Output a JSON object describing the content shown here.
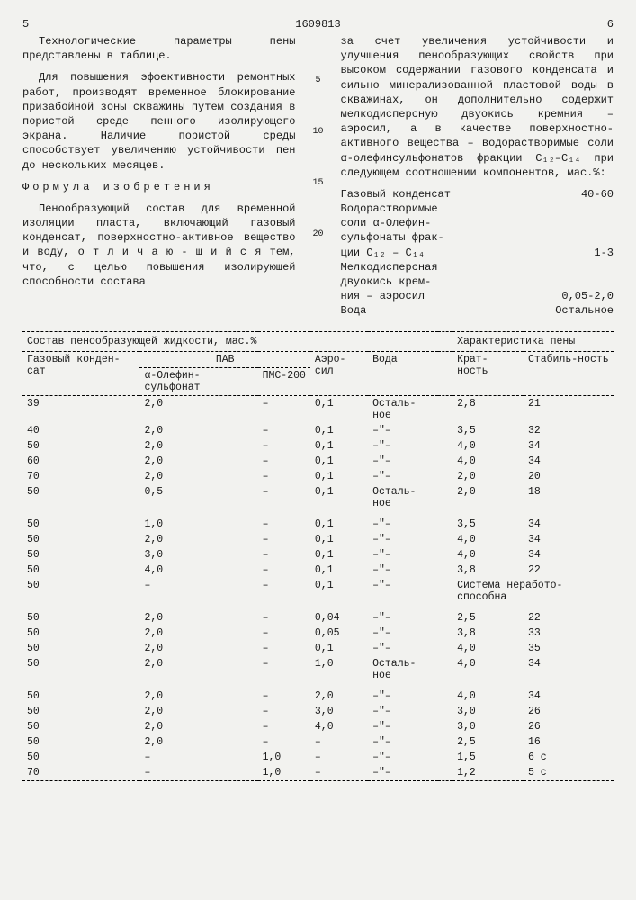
{
  "doc_number": "1609813",
  "page_left_num": "5",
  "page_right_num": "6",
  "left_col": {
    "p1": "Технологические параметры пены представлены в таблице.",
    "p2": "Для повышения эффективности ремонтных работ, производят временное блокирование призабойной зоны скважины путем создания в пористой среде пенного изолирующего экрана. Наличие пористой среды способствует увеличению устойчивости пен до нескольких месяцев.",
    "formula_title": "Формула изобретения",
    "p3": "Пенообразующий состав для временной изоляции пласта, включающий газовый конденсат, поверхностно-активное вещество и воду, о т л и ч а ю - щ и й с я  тем, что, с целью повышения изолирующей  способности состава"
  },
  "line_refs": [
    "5",
    "10",
    "15",
    "20"
  ],
  "right_col": {
    "p1": "за счет увеличения устойчивости и улучшения пенообразующих свойств при высоком содержании газового конденсата и сильно минерализованной пластовой воды в скважинах, он дополнительно содержит мелкодисперсную двуокись кремния – аэросил, а в качестве поверхностно-активного вещества – водорастворимые соли α-олефинсульфонатов фракции C₁₂–C₁₄ при следующем соотношении компонентов, мас.%:",
    "components": [
      {
        "name": "Газовый конденсат",
        "val": "40-60"
      },
      {
        "name": "Водорастворимые",
        "val": ""
      },
      {
        "name": "соли α-Олефин-",
        "val": ""
      },
      {
        "name": "сульфонаты фрак-",
        "val": ""
      },
      {
        "name": "ции C₁₂ – C₁₄",
        "val": "1-3"
      },
      {
        "name": "Мелкодисперсная",
        "val": ""
      },
      {
        "name": "двуокись крем-",
        "val": ""
      },
      {
        "name": "ния – аэросил",
        "val": "0,05-2,0"
      },
      {
        "name": "Вода",
        "val": "Остальное"
      }
    ]
  },
  "table": {
    "header_group_left": "Состав пенообразующей жидкости, мас.%",
    "header_group_right": "Характеристика пены",
    "cols": {
      "gk": "Газовый конден-сат",
      "pav": "ПАВ",
      "pav_sub1": "α-Олефин-сульфонат",
      "pav_sub2": "ПМС-200",
      "aero": "Аэро-сил",
      "water": "Вода",
      "krat": "Крат-ность",
      "stab": "Стабиль-ность"
    },
    "blocks": [
      [
        [
          "39",
          "2,0",
          "–",
          "0,1",
          "Осталь-ное",
          "2,8",
          "21"
        ],
        [
          "40",
          "2,0",
          "–",
          "0,1",
          "–\"–",
          "3,5",
          "32"
        ],
        [
          "50",
          "2,0",
          "–",
          "0,1",
          "–\"–",
          "4,0",
          "34"
        ],
        [
          "60",
          "2,0",
          "–",
          "0,1",
          "–\"–",
          "4,0",
          "34"
        ],
        [
          "70",
          "2,0",
          "–",
          "0,1",
          "–\"–",
          "2,0",
          "20"
        ],
        [
          "50",
          "0,5",
          "–",
          "0,1",
          "Осталь-ное",
          "2,0",
          "18"
        ]
      ],
      [
        [
          "50",
          "1,0",
          "–",
          "0,1",
          "–\"–",
          "3,5",
          "34"
        ],
        [
          "50",
          "2,0",
          "–",
          "0,1",
          "–\"–",
          "4,0",
          "34"
        ],
        [
          "50",
          "3,0",
          "–",
          "0,1",
          "–\"–",
          "4,0",
          "34"
        ],
        [
          "50",
          "4,0",
          "–",
          "0,1",
          "–\"–",
          "3,8",
          "22"
        ],
        [
          "50",
          "–",
          "–",
          "0,1",
          "–\"–",
          "Система неработо-способна",
          ""
        ]
      ],
      [
        [
          "50",
          "2,0",
          "–",
          "0,04",
          "–\"–",
          "2,5",
          "22"
        ],
        [
          "50",
          "2,0",
          "–",
          "0,05",
          "–\"–",
          "3,8",
          "33"
        ],
        [
          "50",
          "2,0",
          "–",
          "0,1",
          "–\"–",
          "4,0",
          "35"
        ],
        [
          "50",
          "2,0",
          "–",
          "1,0",
          "Осталь-ное",
          "4,0",
          "34"
        ]
      ],
      [
        [
          "50",
          "2,0",
          "–",
          "2,0",
          "–\"–",
          "4,0",
          "34"
        ],
        [
          "50",
          "2,0",
          "–",
          "3,0",
          "–\"–",
          "3,0",
          "26"
        ],
        [
          "50",
          "2,0",
          "–",
          "4,0",
          "–\"–",
          "3,0",
          "26"
        ],
        [
          "50",
          "2,0",
          "–",
          "–",
          "–\"–",
          "2,5",
          "16"
        ],
        [
          "50",
          "–",
          "1,0",
          "–",
          "–\"–",
          "1,5",
          "6 с"
        ],
        [
          "70",
          "–",
          "1,0",
          "–",
          "–\"–",
          "1,2",
          "5 с"
        ]
      ]
    ]
  }
}
